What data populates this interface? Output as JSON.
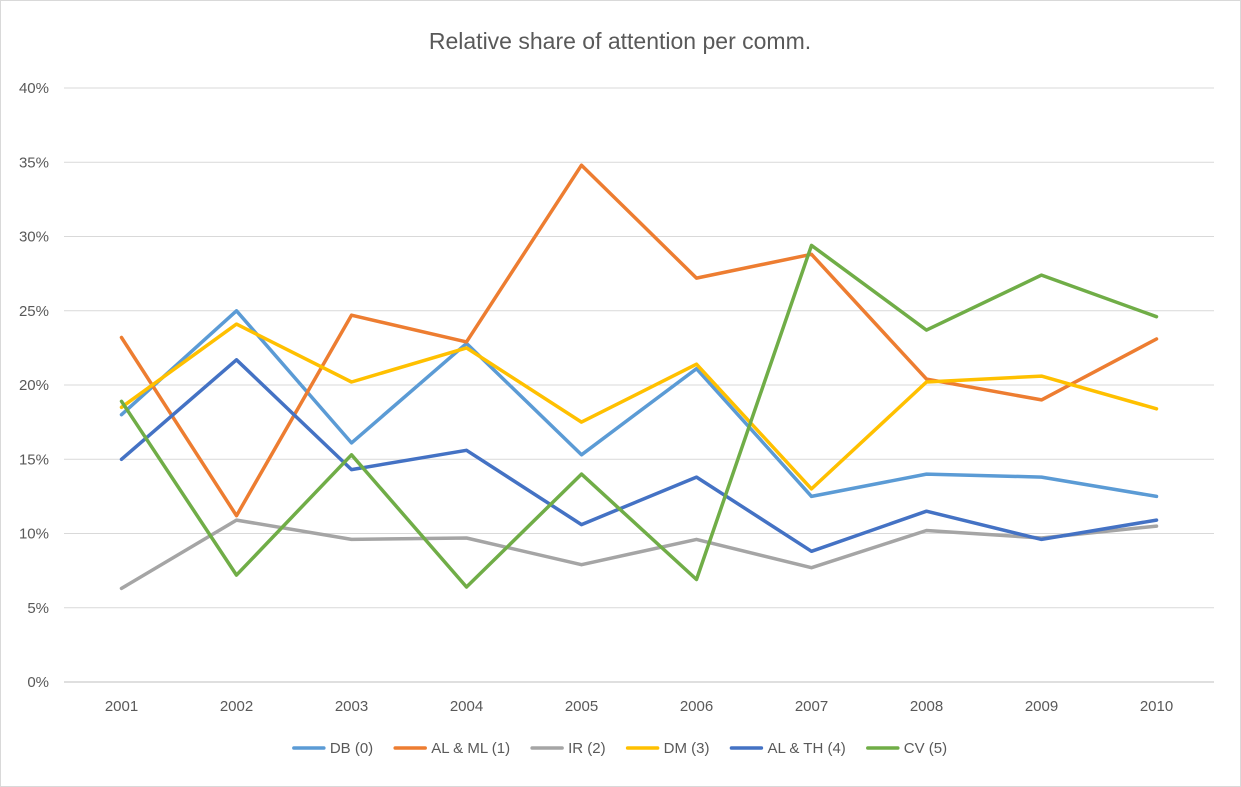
{
  "chart_data": {
    "type": "line",
    "title": "Relative share of attention per comm.",
    "xlabel": "",
    "ylabel": "",
    "categories": [
      "2001",
      "2002",
      "2003",
      "2004",
      "2005",
      "2006",
      "2007",
      "2008",
      "2009",
      "2010"
    ],
    "ylim": [
      0,
      40
    ],
    "yticks": [
      "0%",
      "5%",
      "10%",
      "15%",
      "20%",
      "25%",
      "30%",
      "35%",
      "40%"
    ],
    "grid": true,
    "legend_position": "bottom",
    "series": [
      {
        "name": "DB (0)",
        "color": "#5b9bd5",
        "values": [
          18.0,
          25.0,
          16.1,
          22.8,
          15.3,
          21.1,
          12.5,
          14.0,
          13.8,
          12.5
        ]
      },
      {
        "name": "AL & ML (1)",
        "color": "#ed7d31",
        "values": [
          23.2,
          11.2,
          24.7,
          22.9,
          34.8,
          27.2,
          28.8,
          20.4,
          19.0,
          23.1
        ]
      },
      {
        "name": "IR (2)",
        "color": "#a5a5a5",
        "values": [
          6.3,
          10.9,
          9.6,
          9.7,
          7.9,
          9.6,
          7.7,
          10.2,
          9.7,
          10.5
        ]
      },
      {
        "name": "DM (3)",
        "color": "#ffc000",
        "values": [
          18.5,
          24.1,
          20.2,
          22.5,
          17.5,
          21.4,
          13.0,
          20.2,
          20.6,
          18.4
        ]
      },
      {
        "name": "AL & TH (4)",
        "color": "#4472c4",
        "values": [
          15.0,
          21.7,
          14.3,
          15.6,
          10.6,
          13.8,
          8.8,
          11.5,
          9.6,
          10.9
        ]
      },
      {
        "name": "CV (5)",
        "color": "#70ad47",
        "values": [
          18.9,
          7.2,
          15.3,
          6.4,
          14.0,
          6.9,
          29.4,
          23.7,
          27.4,
          24.6
        ]
      }
    ]
  }
}
